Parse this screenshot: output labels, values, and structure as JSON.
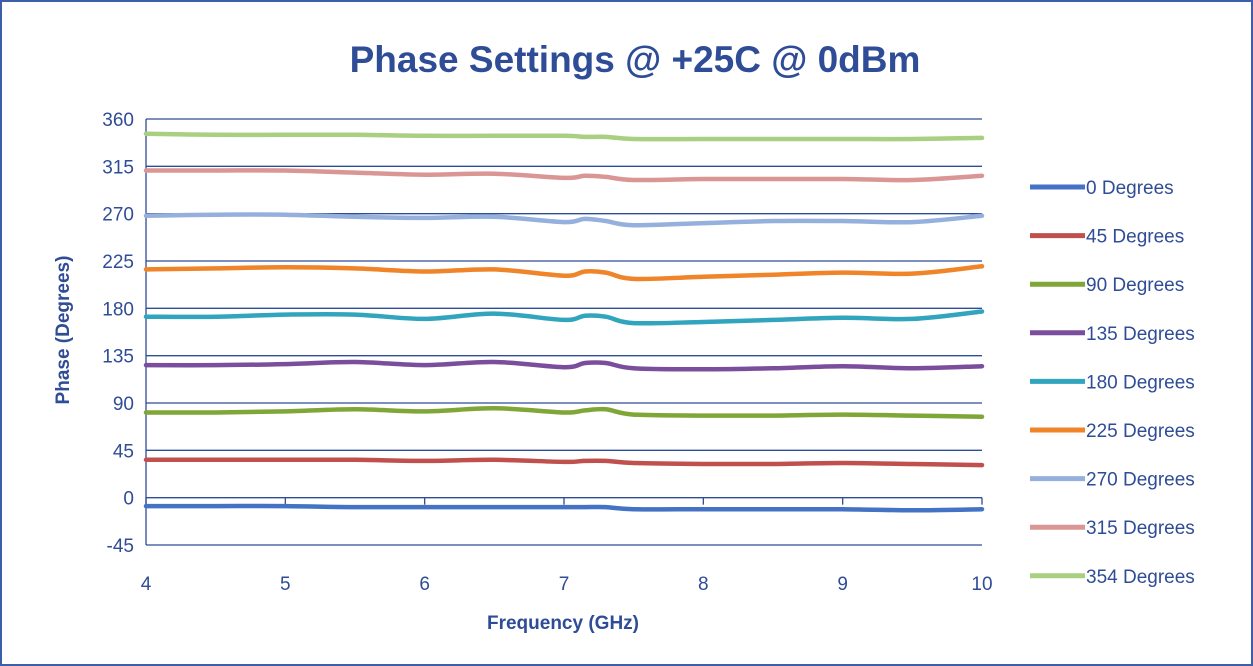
{
  "chart_data": {
    "type": "line",
    "title": "Phase Settings @ +25C @ 0dBm",
    "xlabel": "Frequency (GHz)",
    "ylabel": "Phase (Degrees)",
    "xlim": [
      4,
      10
    ],
    "ylim": [
      -45,
      360
    ],
    "x_ticks": [
      "4",
      "5",
      "6",
      "7",
      "8",
      "9",
      "10"
    ],
    "y_ticks": [
      "360",
      "315",
      "270",
      "225",
      "180",
      "135",
      "90",
      "45",
      "0",
      "-45"
    ],
    "grid": "horizontal",
    "legend_position": "right",
    "x": [
      4.0,
      4.5,
      5.0,
      5.5,
      6.0,
      6.5,
      7.0,
      7.15,
      7.3,
      7.5,
      8.0,
      8.5,
      9.0,
      9.5,
      10.0
    ],
    "series": [
      {
        "name": "0 Degrees",
        "color": "#4472C4",
        "values": [
          -8,
          -8,
          -8,
          -9,
          -9,
          -9,
          -9,
          -9,
          -9,
          -11,
          -11,
          -11,
          -11,
          -12,
          -11
        ]
      },
      {
        "name": "45 Degrees",
        "color": "#C0504D",
        "values": [
          36,
          36,
          36,
          36,
          35,
          36,
          34,
          35,
          35,
          33,
          32,
          32,
          33,
          32,
          31
        ]
      },
      {
        "name": "90 Degrees",
        "color": "#7FA637",
        "values": [
          81,
          81,
          82,
          84,
          82,
          85,
          81,
          83,
          84,
          79,
          78,
          78,
          79,
          78,
          77
        ]
      },
      {
        "name": "135 Degrees",
        "color": "#7A4E9C",
        "values": [
          126,
          126,
          127,
          129,
          126,
          129,
          124,
          128,
          128,
          123,
          122,
          123,
          125,
          123,
          125
        ]
      },
      {
        "name": "180 Degrees",
        "color": "#31A4BE",
        "values": [
          172,
          172,
          174,
          174,
          170,
          175,
          169,
          173,
          172,
          166,
          167,
          169,
          171,
          170,
          177
        ]
      },
      {
        "name": "225 Degrees",
        "color": "#F08428",
        "values": [
          217,
          218,
          219,
          218,
          215,
          217,
          211,
          215,
          214,
          208,
          210,
          212,
          214,
          213,
          220
        ]
      },
      {
        "name": "270 Degrees",
        "color": "#95B0DD",
        "values": [
          268,
          269,
          269,
          267,
          266,
          267,
          262,
          265,
          263,
          259,
          261,
          263,
          263,
          262,
          268
        ]
      },
      {
        "name": "315 Degrees",
        "color": "#DA9694",
        "values": [
          311,
          311,
          311,
          309,
          307,
          308,
          304,
          306,
          305,
          302,
          303,
          303,
          303,
          302,
          306
        ]
      },
      {
        "name": "354 Degrees",
        "color": "#A9CF80",
        "values": [
          346,
          345,
          345,
          345,
          344,
          344,
          344,
          343,
          343,
          341,
          341,
          341,
          341,
          341,
          342
        ]
      }
    ]
  }
}
